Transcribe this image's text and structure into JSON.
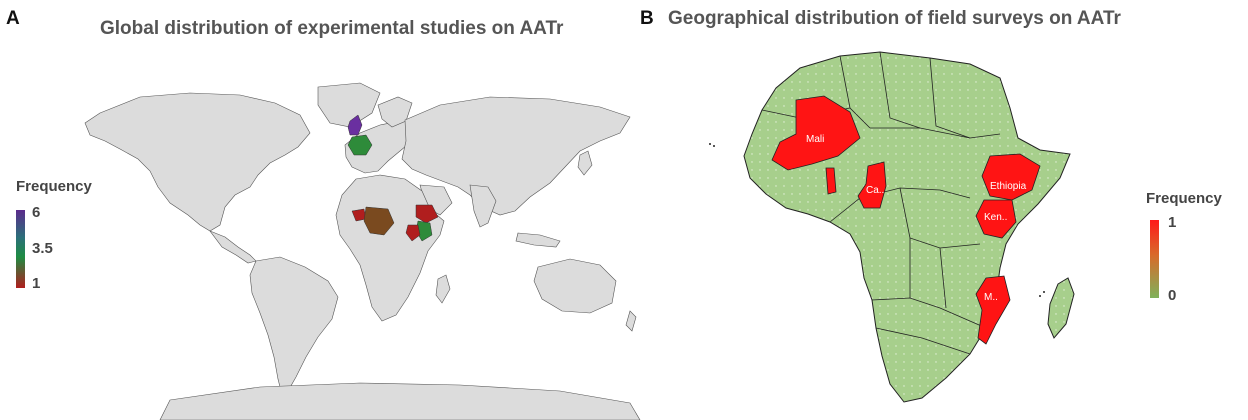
{
  "panel_a": {
    "letter": "A",
    "title": "Global distribution of experimental studies on AATr",
    "legend": {
      "title": "Frequency",
      "ticks": [
        "6",
        "3.5",
        "1"
      ],
      "colors": [
        "#5b2b8c",
        "#1e8c43",
        "#b01e1e"
      ]
    },
    "base_color": "#dcdcdc",
    "highlighted_countries": [
      {
        "name": "United Kingdom",
        "frequency": 6,
        "color": "#6a2fa0"
      },
      {
        "name": "France",
        "frequency": 4,
        "color": "#2e8b3a"
      },
      {
        "name": "Nigeria",
        "frequency": 1,
        "color": "#b01e1e"
      },
      {
        "name": "DR Congo",
        "frequency": 2,
        "color": "#7a4a1f"
      },
      {
        "name": "Ethiopia",
        "frequency": 1,
        "color": "#b01e1e"
      },
      {
        "name": "Kenya",
        "frequency": 4,
        "color": "#2e8b3a"
      },
      {
        "name": "Tanzania",
        "frequency": 1,
        "color": "#b01e1e"
      }
    ]
  },
  "panel_b": {
    "letter": "B",
    "title": "Geographical distribution of field surveys on AATr",
    "legend": {
      "title": "Frequency",
      "ticks": [
        "1",
        "0"
      ],
      "colors": [
        "#ff1a1a",
        "#7fb15a"
      ]
    },
    "base_color": "#a7cf8c",
    "highlight_color": "#ff1414",
    "labels": {
      "mali": "Mali",
      "cameroon": "Ca..",
      "ethiopia": "Ethiopia",
      "kenya": "Ken..",
      "mozambique": "M.."
    },
    "highlighted_countries": [
      {
        "name": "Mali",
        "frequency": 1
      },
      {
        "name": "Ghana",
        "frequency": 1
      },
      {
        "name": "Cameroon",
        "frequency": 1
      },
      {
        "name": "Ethiopia",
        "frequency": 1
      },
      {
        "name": "Kenya",
        "frequency": 1
      },
      {
        "name": "Mozambique",
        "frequency": 1
      }
    ]
  }
}
